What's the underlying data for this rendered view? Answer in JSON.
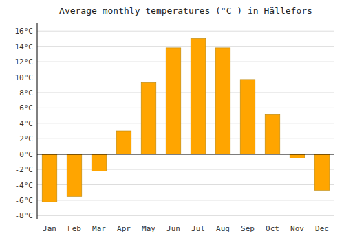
{
  "chart_data": {
    "type": "bar",
    "title": "Average monthly temperatures (°C ) in Hällefors",
    "categories": [
      "Jan",
      "Feb",
      "Mar",
      "Apr",
      "May",
      "Jun",
      "Jul",
      "Aug",
      "Sep",
      "Oct",
      "Nov",
      "Dec"
    ],
    "values": [
      -6.2,
      -5.5,
      -2.2,
      3.0,
      9.3,
      13.8,
      15.0,
      13.8,
      9.7,
      5.2,
      -0.5,
      -4.7
    ],
    "color": "#FFA500",
    "ylim": [
      -8.5,
      17
    ],
    "yticks": [
      {
        "value": -8,
        "label": "-8°C"
      },
      {
        "value": -6,
        "label": "-6°C"
      },
      {
        "value": -4,
        "label": "-4°C"
      },
      {
        "value": -2,
        "label": "-2°C"
      },
      {
        "value": 0,
        "label": "0°C"
      },
      {
        "value": 2,
        "label": "2°C"
      },
      {
        "value": 4,
        "label": "4°C"
      },
      {
        "value": 6,
        "label": "6°C"
      },
      {
        "value": 8,
        "label": "8°C"
      },
      {
        "value": 10,
        "label": "10°C"
      },
      {
        "value": 12,
        "label": "12°C"
      },
      {
        "value": 14,
        "label": "14°C"
      },
      {
        "value": 16,
        "label": "16°C"
      }
    ],
    "grid": true
  }
}
